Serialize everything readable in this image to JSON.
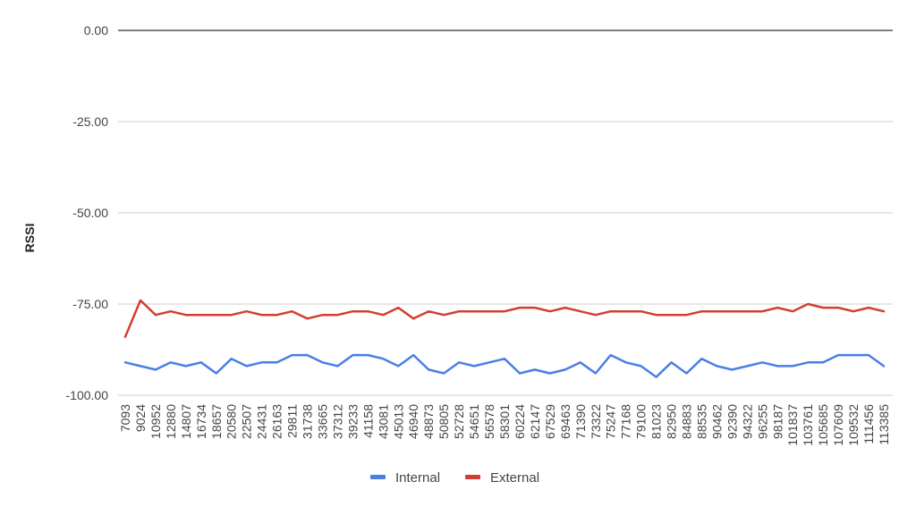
{
  "chart_data": {
    "type": "line",
    "title": "",
    "xlabel": "",
    "ylabel": "RSSI",
    "ylim": [
      -100,
      0
    ],
    "y_ticks": [
      "0.00",
      "-25.00",
      "-50.00",
      "-75.00",
      "-100.00"
    ],
    "grid": true,
    "legend_position": "bottom",
    "categories": [
      "7093",
      "9024",
      "10952",
      "12880",
      "14807",
      "16734",
      "18657",
      "20580",
      "22507",
      "24431",
      "26163",
      "29811",
      "31738",
      "33665",
      "37312",
      "39233",
      "41158",
      "43081",
      "45013",
      "46940",
      "48873",
      "50805",
      "52728",
      "54651",
      "56578",
      "58301",
      "60224",
      "62147",
      "67529",
      "69463",
      "71390",
      "73322",
      "75247",
      "77168",
      "79100",
      "81023",
      "82950",
      "84883",
      "88535",
      "90462",
      "92390",
      "94322",
      "96255",
      "98187",
      "101837",
      "103761",
      "105685",
      "107609",
      "109532",
      "111456",
      "113385"
    ],
    "series": [
      {
        "name": "Internal",
        "color": "#4a7fe6",
        "values": [
          -91,
          -92,
          -93,
          -91,
          -92,
          -91,
          -94,
          -90,
          -92,
          -91,
          -91,
          -89,
          -89,
          -91,
          -92,
          -89,
          -89,
          -90,
          -92,
          -89,
          -93,
          -94,
          -91,
          -92,
          -91,
          -90,
          -94,
          -93,
          -94,
          -93,
          -91,
          -94,
          -89,
          -91,
          -92,
          -95,
          -91,
          -94,
          -90,
          -92,
          -93,
          -92,
          -91,
          -92,
          -92,
          -91,
          -91,
          -89,
          -89,
          -89,
          -92
        ]
      },
      {
        "name": "External",
        "color": "#d23f31",
        "values": [
          -84,
          -74,
          -78,
          -77,
          -78,
          -78,
          -78,
          -78,
          -77,
          -78,
          -78,
          -77,
          -79,
          -78,
          -78,
          -77,
          -77,
          -78,
          -76,
          -79,
          -77,
          -78,
          -77,
          -77,
          -77,
          -77,
          -76,
          -76,
          -77,
          -76,
          -77,
          -78,
          -77,
          -77,
          -77,
          -78,
          -78,
          -78,
          -77,
          -77,
          -77,
          -77,
          -77,
          -76,
          -77,
          -75,
          -76,
          -76,
          -77,
          -76,
          -77
        ]
      }
    ]
  }
}
